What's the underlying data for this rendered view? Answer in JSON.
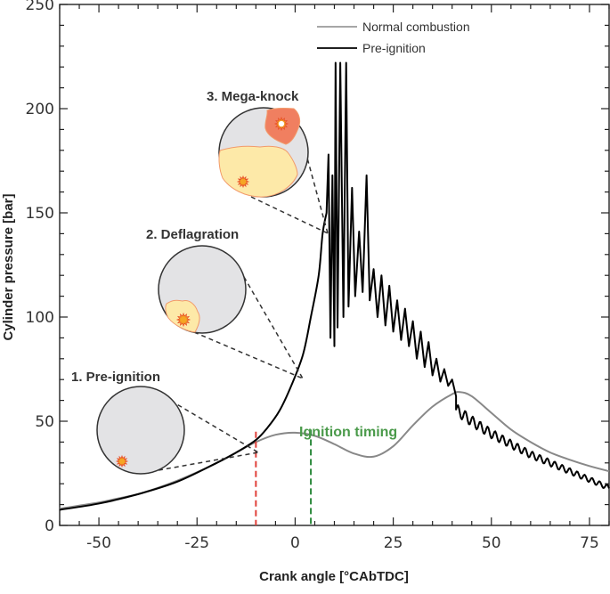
{
  "chart_data": {
    "type": "line",
    "xlabel": "Crank angle [°CAbTDC]",
    "ylabel": "Cylinder pressure [bar]",
    "xlim": [
      -60,
      80
    ],
    "ylim": [
      0,
      250
    ],
    "x_ticks": [
      -50,
      -25,
      0,
      25,
      50,
      75
    ],
    "y_ticks": [
      0,
      50,
      100,
      150,
      200,
      250
    ],
    "grid": false,
    "legend_position": "top-center",
    "colors": {
      "normal": "#888888",
      "preignition": "#000000",
      "preignition_marker": "#e0403a",
      "ignition_marker": "#2e8b3e",
      "ignition_text": "#4a9a4a",
      "chamber": "#e3e3e5",
      "flame": "#fde9a8",
      "flame_edge": "#f29a6a",
      "knock": "#f07f60"
    },
    "series": [
      {
        "name": "Normal combustion",
        "x": [
          -60,
          -55,
          -50,
          -45,
          -40,
          -35,
          -30,
          -25,
          -20,
          -15,
          -10,
          -5,
          0,
          5,
          10,
          15,
          20,
          25,
          30,
          35,
          40,
          42,
          45,
          50,
          55,
          60,
          65,
          70,
          75,
          80
        ],
        "y": [
          8,
          9.5,
          11,
          13,
          15,
          18,
          21.5,
          25.5,
          30,
          35,
          40,
          43.5,
          44.5,
          43,
          39,
          34.5,
          33,
          38,
          48,
          57,
          63,
          64,
          62,
          54,
          46,
          40,
          35,
          31.5,
          28.5,
          26
        ]
      },
      {
        "name": "Pre-ignition",
        "x": [
          -60,
          -50,
          -40,
          -30,
          -20,
          -15,
          -10,
          -7,
          -4,
          -1,
          2,
          4,
          6,
          7,
          8
        ],
        "y": [
          7.5,
          10.5,
          15,
          21,
          30,
          35,
          41,
          47,
          55,
          67,
          82,
          100,
          120,
          140,
          150
        ]
      }
    ],
    "knock_tail": {
      "x": [
        20,
        25,
        30,
        35,
        40,
        45,
        50,
        55,
        60,
        65,
        70,
        75,
        80
      ],
      "y": [
        95,
        85,
        74,
        65,
        57,
        50,
        44,
        39,
        34,
        30,
        26,
        22,
        18
      ]
    },
    "markers": {
      "pre_ignition_x": -10,
      "ignition_timing_x": 4,
      "ignition_timing_label": "Ignition timing"
    },
    "annotations": [
      {
        "label": "1. Pre-ignition"
      },
      {
        "label": "2. Deflagration"
      },
      {
        "label": "3. Mega-knock"
      }
    ]
  }
}
